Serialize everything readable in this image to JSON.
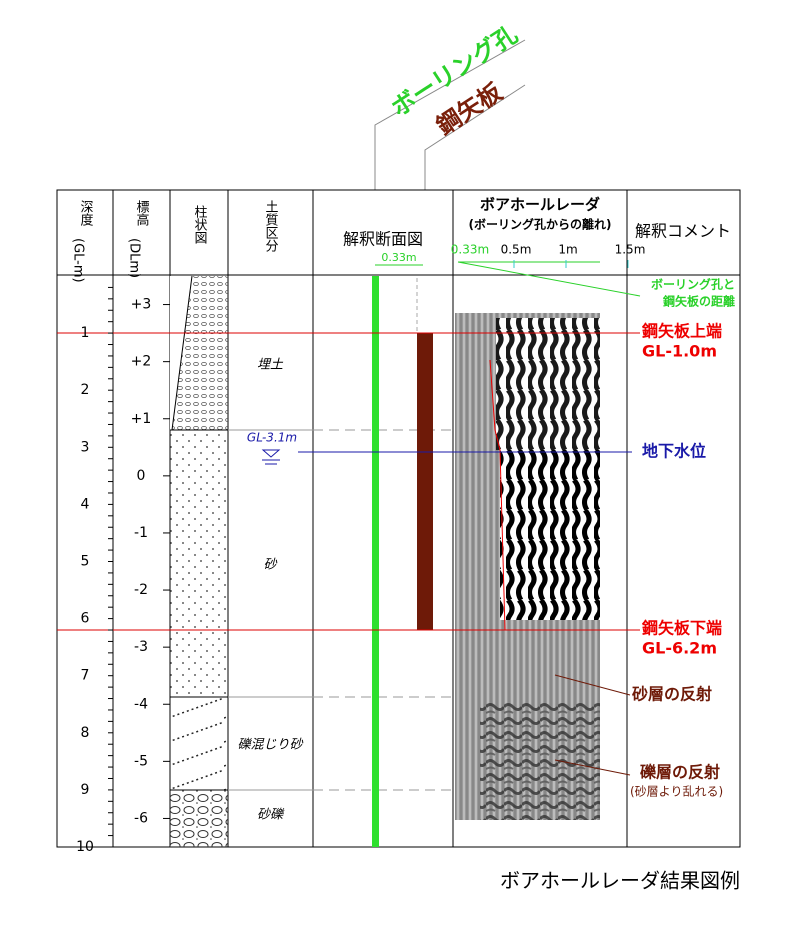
{
  "title_labels": {
    "boring_hole": "ボーリング孔",
    "sheet_pile": "鋼矢板"
  },
  "headers": {
    "depth": "深度",
    "depth_unit": "(GL-m)",
    "elevation": "標高",
    "elevation_unit": "(DLm)",
    "column": "柱状図",
    "soil": "土質区分",
    "section": "解釈断面図",
    "radar": "ボアホールレーダ",
    "radar_sub": "(ボーリング孔からの離れ)",
    "comment": "解釈コメント"
  },
  "section_scale": "0.33m",
  "radar_scale": [
    "0.33m",
    "0.5m",
    "1m",
    "1.5m"
  ],
  "depth_ticks": [
    1,
    2,
    3,
    4,
    5,
    6,
    7,
    8,
    9,
    10
  ],
  "elevation_ticks": [
    {
      "value": 3,
      "label": "+3"
    },
    {
      "value": 2,
      "label": "+2"
    },
    {
      "value": 1,
      "label": "+1"
    },
    0,
    -1,
    -2,
    -3,
    -4,
    -5,
    -6
  ],
  "soil_layers": [
    "埋土",
    "砂",
    "礫混じり砂",
    "砂礫"
  ],
  "water_level": "GL-3.1m",
  "comments": {
    "distance": [
      "ボーリング孔と",
      "鋼矢板の距離"
    ],
    "pile_top": [
      "鋼矢板上端",
      "GL-1.0m"
    ],
    "water": "地下水位",
    "pile_bottom": [
      "鋼矢板下端",
      "GL-6.2m"
    ],
    "sand_reflection": "砂層の反射",
    "gravel_reflection": [
      "礫層の反射",
      "(砂層より乱れる)"
    ]
  },
  "caption": "ボアホールレーダ結果図例"
}
